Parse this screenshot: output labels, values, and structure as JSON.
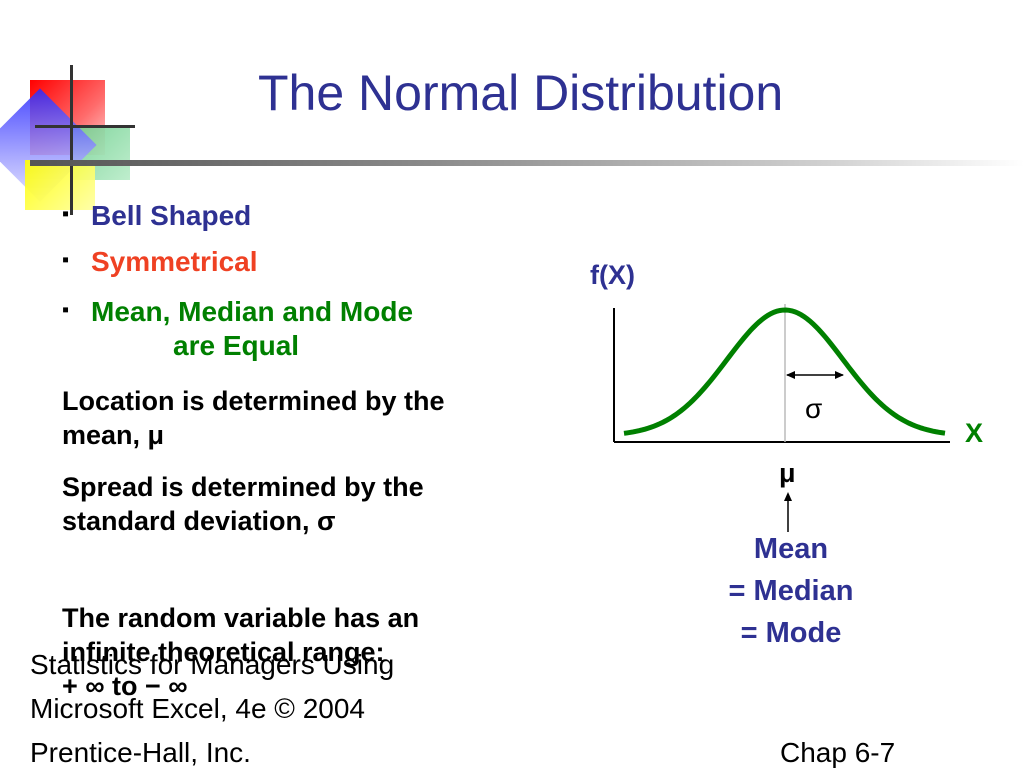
{
  "title": "The Normal Distribution",
  "bullets": [
    {
      "text": "Bell Shaped",
      "color": "#2e3192"
    },
    {
      "text": "Symmetrical",
      "color": "#ef4123"
    },
    {
      "text": "Mean, Median and Mode",
      "text2": "are Equal",
      "color": "#008000"
    }
  ],
  "paragraphs": {
    "location_line1": "Location is determined by the",
    "location_line2": "mean, μ",
    "spread_line1": "Spread is determined by the",
    "spread_line2": "standard deviation, σ",
    "range_line1": "The random variable has an",
    "range_line2": "infinite theoretical range:",
    "range_line3": "+ ∞  to  − ∞"
  },
  "graph": {
    "y_label": "f(X)",
    "x_label": "X",
    "sigma_label": "σ",
    "mu_label": "μ",
    "mean_lines": [
      "Mean",
      "= Median",
      "= Mode"
    ],
    "curve_color": "#008000",
    "label_color": "#2e3192",
    "x_label_color": "#008000"
  },
  "footer": {
    "line1": "Statistics for Managers Using",
    "line2": "Microsoft Excel, 4e © 2004",
    "line3": "Prentice-Hall, Inc.",
    "chap": "Chap 6-7"
  }
}
